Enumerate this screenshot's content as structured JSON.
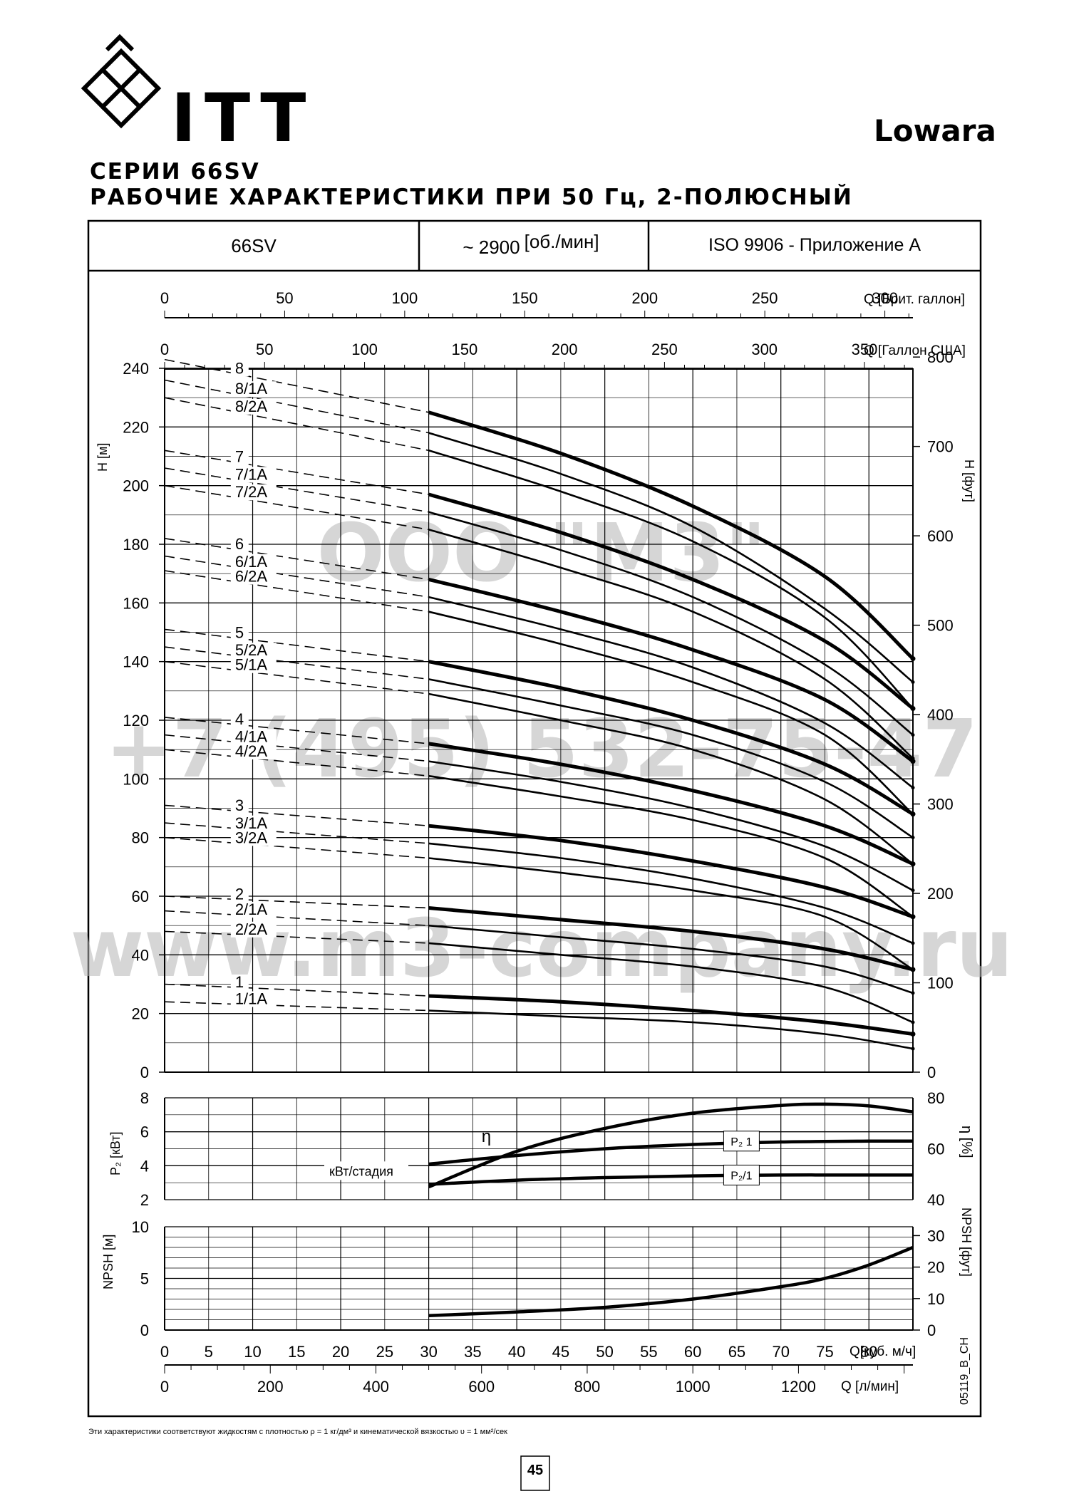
{
  "header": {
    "brand": "ITT",
    "brand_right": "Lowara",
    "title_line1": "СЕРИИ 66SV",
    "title_line2": "РАБОЧИЕ ХАРАКТЕРИСТИКИ ПРИ 50 Гц, 2-ПОЛЮСНЫЙ"
  },
  "info_row": {
    "model": "66SV",
    "speed_prefix": "~ 2900",
    "speed_unit": "[об./мин]",
    "standard": "ISO 9906 - Приложение A"
  },
  "axes": {
    "q_brit_label": "Q [Брит. галлон]",
    "q_brit_ticks": [
      0,
      50,
      100,
      150,
      200,
      250,
      300
    ],
    "q_us_label": "Q [Галлон США]",
    "q_us_ticks": [
      0,
      50,
      100,
      150,
      200,
      250,
      300,
      350
    ],
    "h_left_label": "H [м]",
    "h_left_ticks": [
      0,
      20,
      40,
      60,
      80,
      100,
      120,
      140,
      160,
      180,
      200,
      220,
      240
    ],
    "h_right_label": "H [фут]",
    "h_right_ticks": [
      0,
      100,
      200,
      300,
      400,
      500,
      600,
      700,
      800
    ],
    "power_label": "P₂ [кВт]",
    "power_ticks": [
      2,
      4,
      6,
      8
    ],
    "eff_label": "η [%]",
    "eff_ticks": [
      40,
      60,
      80
    ],
    "npsh_label": "NPSH [м]",
    "npsh_ticks": [
      0,
      5,
      10
    ],
    "npsh_ft_label": "NPSH [фут]",
    "npsh_ft_ticks": [
      0,
      10,
      20,
      30
    ],
    "q_m3h_label": "Q[куб. м/ч]",
    "q_m3h_ticks": [
      0,
      5,
      10,
      15,
      20,
      25,
      30,
      35,
      40,
      45,
      50,
      55,
      60,
      65,
      70,
      75,
      80
    ],
    "q_lmin_label": "Q [л/мин]",
    "q_lmin_ticks": [
      0,
      200,
      400,
      600,
      800,
      1000,
      1200
    ]
  },
  "labels": {
    "eta": "η",
    "kw_stage": "кВт/стадия",
    "p2_upper": "P₂ 1",
    "p2_lower": "P₂/1",
    "code": "05119_B_CH"
  },
  "watermark": {
    "line1": "ООО \"М3\"",
    "line2": "+7 (495) 532-75-47",
    "line3": "www.m3-company.ru"
  },
  "chart_data": [
    {
      "type": "line",
      "name": "head",
      "xlabel": "Q [куб. м/ч]",
      "ylabel": "H [м]",
      "xlim": [
        0,
        85
      ],
      "ylim": [
        0,
        240
      ],
      "dashed_below_x": 30,
      "series": [
        {
          "name": "8",
          "heavy": true,
          "x": [
            0,
            30,
            45,
            60,
            75,
            85
          ],
          "y": [
            243,
            225,
            211,
            193,
            169,
            141
          ]
        },
        {
          "name": "8/1A",
          "heavy": false,
          "x": [
            0,
            30,
            45,
            60,
            75,
            85
          ],
          "y": [
            236,
            218,
            204,
            186,
            158,
            133
          ]
        },
        {
          "name": "8/2A",
          "heavy": false,
          "x": [
            0,
            30,
            45,
            60,
            75,
            85
          ],
          "y": [
            230,
            212,
            198,
            181,
            155,
            124
          ]
        },
        {
          "name": "7",
          "heavy": true,
          "x": [
            0,
            30,
            45,
            60,
            75,
            85
          ],
          "y": [
            212,
            197,
            184,
            168,
            147,
            124
          ]
        },
        {
          "name": "7/1A",
          "heavy": false,
          "x": [
            0,
            30,
            45,
            60,
            75,
            85
          ],
          "y": [
            206,
            191,
            178,
            162,
            139,
            115
          ]
        },
        {
          "name": "7/2A",
          "heavy": false,
          "x": [
            0,
            30,
            45,
            60,
            75,
            85
          ],
          "y": [
            200,
            185,
            172,
            157,
            134,
            107
          ]
        },
        {
          "name": "6",
          "heavy": true,
          "x": [
            0,
            30,
            45,
            60,
            75,
            85
          ],
          "y": [
            182,
            168,
            157,
            144,
            127,
            106
          ]
        },
        {
          "name": "6/1A",
          "heavy": false,
          "x": [
            0,
            30,
            45,
            60,
            75,
            85
          ],
          "y": [
            176,
            162,
            151,
            138,
            119,
            97
          ]
        },
        {
          "name": "6/2A",
          "heavy": false,
          "x": [
            0,
            30,
            45,
            60,
            75,
            85
          ],
          "y": [
            171,
            157,
            146,
            133,
            115,
            88
          ]
        },
        {
          "name": "5",
          "heavy": true,
          "x": [
            0,
            30,
            45,
            60,
            75,
            85
          ],
          "y": [
            151,
            140,
            131,
            120,
            105,
            88
          ]
        },
        {
          "name": "5/2A",
          "heavy": false,
          "x": [
            0,
            30,
            45,
            60,
            75,
            85
          ],
          "y": [
            145,
            134,
            125,
            115,
            99,
            80
          ]
        },
        {
          "name": "5/1A",
          "heavy": false,
          "x": [
            0,
            30,
            45,
            60,
            75,
            85
          ],
          "y": [
            140,
            129,
            120,
            110,
            93,
            71
          ]
        },
        {
          "name": "4",
          "heavy": true,
          "x": [
            0,
            30,
            45,
            60,
            75,
            85
          ],
          "y": [
            121,
            112,
            105,
            96,
            84,
            71
          ]
        },
        {
          "name": "4/1A",
          "heavy": false,
          "x": [
            0,
            30,
            45,
            60,
            75,
            85
          ],
          "y": [
            115,
            106,
            99,
            90,
            77,
            62
          ]
        },
        {
          "name": "4/2A",
          "heavy": false,
          "x": [
            0,
            30,
            45,
            60,
            75,
            85
          ],
          "y": [
            110,
            101,
            94,
            86,
            73,
            53
          ]
        },
        {
          "name": "3",
          "heavy": true,
          "x": [
            0,
            30,
            45,
            60,
            75,
            85
          ],
          "y": [
            91,
            84,
            79,
            72,
            63,
            53
          ]
        },
        {
          "name": "3/1A",
          "heavy": false,
          "x": [
            0,
            30,
            45,
            60,
            75,
            85
          ],
          "y": [
            85,
            78,
            73,
            66,
            56,
            44
          ]
        },
        {
          "name": "3/2A",
          "heavy": false,
          "x": [
            0,
            30,
            45,
            60,
            75,
            85
          ],
          "y": [
            80,
            73,
            68,
            62,
            53,
            35
          ]
        },
        {
          "name": "2",
          "heavy": true,
          "x": [
            0,
            30,
            45,
            60,
            75,
            85
          ],
          "y": [
            60,
            56,
            52,
            48,
            42,
            35
          ]
        },
        {
          "name": "2/1A",
          "heavy": false,
          "x": [
            0,
            30,
            45,
            60,
            75,
            85
          ],
          "y": [
            55,
            50,
            46,
            42,
            36,
            27
          ]
        },
        {
          "name": "2/2A",
          "heavy": false,
          "x": [
            0,
            30,
            45,
            60,
            75,
            85
          ],
          "y": [
            48,
            44,
            40,
            36,
            29,
            17
          ]
        },
        {
          "name": "1",
          "heavy": true,
          "x": [
            0,
            30,
            45,
            60,
            75,
            85
          ],
          "y": [
            30,
            26,
            24,
            21,
            17,
            13
          ]
        },
        {
          "name": "1/1A",
          "heavy": false,
          "x": [
            0,
            30,
            45,
            60,
            75,
            85
          ],
          "y": [
            24,
            21,
            19,
            17,
            13,
            8
          ]
        }
      ]
    },
    {
      "type": "line",
      "name": "power_and_efficiency",
      "xlim": [
        0,
        85
      ],
      "series": [
        {
          "name": "η",
          "axis": "eff",
          "x": [
            30,
            40,
            50,
            60,
            70,
            75,
            80,
            85
          ],
          "y": [
            45,
            59,
            68,
            74,
            77,
            77.5,
            76.8,
            74.5
          ]
        },
        {
          "name": "P₂ 1",
          "axis": "power",
          "x": [
            30,
            40,
            50,
            60,
            70,
            80,
            85
          ],
          "y": [
            4.1,
            4.6,
            5.0,
            5.25,
            5.4,
            5.45,
            5.45
          ]
        },
        {
          "name": "P₂/1",
          "axis": "power",
          "x": [
            30,
            40,
            50,
            60,
            70,
            80,
            85
          ],
          "y": [
            2.9,
            3.15,
            3.3,
            3.4,
            3.45,
            3.45,
            3.45
          ]
        }
      ]
    },
    {
      "type": "line",
      "name": "npsh",
      "xlim": [
        0,
        85
      ],
      "ylim": [
        0,
        10
      ],
      "series": [
        {
          "name": "NPSH",
          "x": [
            30,
            40,
            50,
            60,
            70,
            75,
            80,
            85
          ],
          "y": [
            1.4,
            1.75,
            2.2,
            3.0,
            4.2,
            5.0,
            6.3,
            8.0
          ]
        }
      ]
    }
  ],
  "footnote": "Эти характеристики соответствуют жидкостям с плотностью ρ = 1 кг/дм³ и кинематической вязкостью υ = 1 мм²/сек",
  "page_number": "45"
}
